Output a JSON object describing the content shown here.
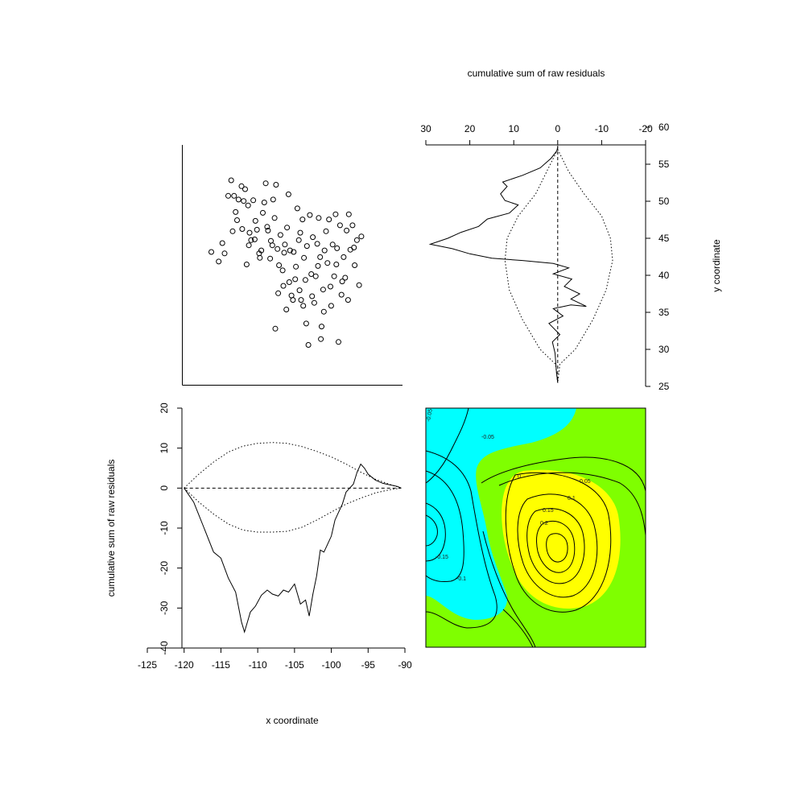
{
  "chart_data": [
    {
      "panel": "top-left",
      "type": "scatter",
      "title": "",
      "points": [
        [
          -114.5,
          44.2
        ],
        [
          -113.7,
          50.6
        ],
        [
          -113.3,
          52.7
        ],
        [
          -112.9,
          50.6
        ],
        [
          -112.5,
          47.3
        ],
        [
          -112.3,
          50.1
        ],
        [
          -111.9,
          51.9
        ],
        [
          -111.6,
          49.9
        ],
        [
          -111.4,
          51.5
        ],
        [
          -111.2,
          41.3
        ],
        [
          -111.0,
          49.3
        ],
        [
          -110.8,
          45.6
        ],
        [
          -110.6,
          44.6
        ],
        [
          -110.3,
          50.0
        ],
        [
          -110.0,
          47.2
        ],
        [
          -109.8,
          46.0
        ],
        [
          -109.5,
          42.8
        ],
        [
          -109.2,
          43.2
        ],
        [
          -109.0,
          48.3
        ],
        [
          -108.8,
          49.7
        ],
        [
          -108.6,
          52.3
        ],
        [
          -108.3,
          45.9
        ],
        [
          -108.0,
          42.1
        ],
        [
          -107.9,
          44.5
        ],
        [
          -107.6,
          50.1
        ],
        [
          -107.4,
          47.6
        ],
        [
          -107.2,
          52.1
        ],
        [
          -107.0,
          43.4
        ],
        [
          -106.8,
          41.2
        ],
        [
          -106.6,
          45.3
        ],
        [
          -106.3,
          40.5
        ],
        [
          -106.2,
          38.4
        ],
        [
          -106.0,
          44.0
        ],
        [
          -105.7,
          46.3
        ],
        [
          -105.5,
          50.8
        ],
        [
          -105.3,
          43.2
        ],
        [
          -105.1,
          37.1
        ],
        [
          -104.9,
          36.5
        ],
        [
          -104.8,
          43.0
        ],
        [
          -104.5,
          41.0
        ],
        [
          -104.3,
          48.9
        ],
        [
          -104.1,
          44.6
        ],
        [
          -103.9,
          45.6
        ],
        [
          -103.6,
          47.4
        ],
        [
          -103.4,
          42.2
        ],
        [
          -103.2,
          39.2
        ],
        [
          -103.0,
          43.8
        ],
        [
          -102.8,
          30.4
        ],
        [
          -102.6,
          48.0
        ],
        [
          -102.4,
          40.0
        ],
        [
          -102.2,
          45.0
        ],
        [
          -102.0,
          36.1
        ],
        [
          -101.8,
          39.7
        ],
        [
          -101.6,
          44.1
        ],
        [
          -101.4,
          47.6
        ],
        [
          -101.2,
          42.3
        ],
        [
          -101.0,
          32.9
        ],
        [
          -100.8,
          37.9
        ],
        [
          -100.6,
          43.2
        ],
        [
          -100.4,
          45.8
        ],
        [
          -100.2,
          41.5
        ],
        [
          -100.0,
          47.4
        ],
        [
          -99.7,
          35.7
        ],
        [
          -99.5,
          44.0
        ],
        [
          -99.3,
          39.7
        ],
        [
          -99.1,
          48.1
        ],
        [
          -98.9,
          43.5
        ],
        [
          -98.7,
          30.8
        ],
        [
          -98.5,
          46.6
        ],
        [
          -98.3,
          37.2
        ],
        [
          -98.0,
          42.3
        ],
        [
          -97.8,
          39.5
        ],
        [
          -97.6,
          45.9
        ],
        [
          -97.3,
          48.1
        ],
        [
          -97.1,
          43.3
        ],
        [
          -96.8,
          46.6
        ],
        [
          -96.5,
          41.2
        ],
        [
          -96.2,
          44.6
        ],
        [
          -95.9,
          38.5
        ],
        [
          -95.6,
          45.1
        ],
        [
          -116.0,
          43.0
        ],
        [
          -115.0,
          41.7
        ],
        [
          -114.2,
          42.8
        ],
        [
          -113.1,
          45.8
        ],
        [
          -112.7,
          48.4
        ],
        [
          -111.8,
          46.1
        ],
        [
          -110.9,
          43.9
        ],
        [
          -110.1,
          44.7
        ],
        [
          -109.4,
          42.2
        ],
        [
          -108.4,
          46.4
        ],
        [
          -107.7,
          43.9
        ],
        [
          -106.9,
          37.4
        ],
        [
          -106.1,
          42.9
        ],
        [
          -105.4,
          38.9
        ],
        [
          -104.6,
          39.3
        ],
        [
          -103.8,
          36.5
        ],
        [
          -103.1,
          33.3
        ],
        [
          -102.3,
          37.0
        ],
        [
          -101.5,
          41.1
        ],
        [
          -100.7,
          34.9
        ],
        [
          -99.8,
          38.3
        ],
        [
          -99.0,
          41.3
        ],
        [
          -98.2,
          39.0
        ],
        [
          -97.4,
          36.5
        ],
        [
          -96.6,
          43.6
        ],
        [
          -107.3,
          32.6
        ],
        [
          -105.8,
          35.2
        ],
        [
          -101.1,
          31.2
        ],
        [
          -103.5,
          35.7
        ],
        [
          -104.0,
          37.8
        ]
      ],
      "xlim": [
        -120,
        -90
      ],
      "ylim": [
        25,
        57.5
      ],
      "grid": false
    },
    {
      "panel": "top-right",
      "type": "line",
      "title": "cumulative sum of raw residuals",
      "ylabel": "y coordinate",
      "xlim": [
        30,
        -20
      ],
      "ylim": [
        25,
        60
      ],
      "x_ticks": [
        30,
        20,
        10,
        0,
        -10,
        -20
      ],
      "y_ticks": [
        25,
        30,
        35,
        40,
        45,
        50,
        55,
        60
      ],
      "series": [
        {
          "points": [
            [
              0,
              25.5
            ],
            [
              0.3,
              27
            ],
            [
              0.6,
              29.5
            ],
            [
              1.2,
              31
            ],
            [
              -0.5,
              32
            ],
            [
              2.0,
              33.5
            ],
            [
              -1.2,
              34.5
            ],
            [
              1.0,
              35.5
            ],
            [
              -3.0,
              36
            ],
            [
              -6.5,
              35.8
            ],
            [
              -3.0,
              36.8
            ],
            [
              -5.0,
              37.5
            ],
            [
              -1.5,
              38.5
            ],
            [
              -3.2,
              39.5
            ],
            [
              1.0,
              40.2
            ],
            [
              -2.5,
              41.0
            ],
            [
              1.0,
              41.6
            ],
            [
              8.0,
              42.0
            ],
            [
              15.0,
              42.3
            ],
            [
              20.0,
              42.9
            ],
            [
              24.0,
              43.6
            ],
            [
              29.0,
              44.2
            ],
            [
              25.0,
              45.0
            ],
            [
              22.0,
              45.8
            ],
            [
              18.0,
              46.6
            ],
            [
              16.0,
              47.6
            ],
            [
              11.0,
              48.4
            ],
            [
              9.0,
              49.5
            ],
            [
              12.0,
              50.1
            ],
            [
              13.0,
              51.0
            ],
            [
              11.5,
              52.0
            ],
            [
              12.5,
              52.6
            ],
            [
              8.0,
              53.5
            ],
            [
              4.0,
              54.5
            ],
            [
              1.5,
              55.8
            ],
            [
              0.2,
              56.8
            ],
            [
              0,
              57.3
            ]
          ]
        },
        {
          "points": [
            [
              0,
              57
            ],
            [
              -2.5,
              54
            ],
            [
              -6,
              51
            ],
            [
              -10,
              48
            ],
            [
              -12,
              45
            ],
            [
              -12.5,
              42
            ],
            [
              -11,
              38
            ],
            [
              -8,
              34
            ],
            [
              -4,
              30
            ],
            [
              -0.5,
              28
            ],
            [
              0,
              25.5
            ]
          ]
        },
        {
          "points": [
            [
              0,
              57
            ],
            [
              2.5,
              54
            ],
            [
              5,
              51
            ],
            [
              9,
              48
            ],
            [
              11.5,
              45
            ],
            [
              12,
              42
            ],
            [
              11,
              38
            ],
            [
              8,
              34
            ],
            [
              4,
              30
            ],
            [
              0.5,
              28
            ],
            [
              0,
              25.5
            ]
          ]
        }
      ],
      "zero_line": 0,
      "grid": false
    },
    {
      "panel": "bottom-left",
      "type": "line",
      "title": "",
      "xlabel": "x coordinate",
      "ylabel": "cumulative sum of raw residuals",
      "xlim": [
        -120,
        -90
      ],
      "ylim": [
        -40,
        20
      ],
      "x_ticks": [
        -125,
        -120,
        -115,
        -110,
        -105,
        -100,
        -95,
        -90
      ],
      "y_ticks": [
        -40,
        -30,
        -20,
        -10,
        0,
        10,
        20
      ],
      "series": [
        {
          "points": [
            [
              -120.0,
              0
            ],
            [
              -118.7,
              -3.5
            ],
            [
              -117.4,
              -9.5
            ],
            [
              -116.0,
              -16
            ],
            [
              -115.0,
              -17.5
            ],
            [
              -114.0,
              -22.5
            ],
            [
              -113.0,
              -26
            ],
            [
              -112.2,
              -33.5
            ],
            [
              -111.8,
              -36
            ],
            [
              -111.0,
              -31
            ],
            [
              -110.3,
              -29.5
            ],
            [
              -109.5,
              -26.8
            ],
            [
              -108.7,
              -25.5
            ],
            [
              -108.0,
              -26.5
            ],
            [
              -107.2,
              -27
            ],
            [
              -106.5,
              -25.5
            ],
            [
              -105.8,
              -26
            ],
            [
              -105.0,
              -24
            ],
            [
              -104.2,
              -29
            ],
            [
              -103.5,
              -28
            ],
            [
              -103.0,
              -32
            ],
            [
              -102.5,
              -26.5
            ],
            [
              -102.0,
              -22
            ],
            [
              -101.5,
              -15.5
            ],
            [
              -101.0,
              -16
            ],
            [
              -100.5,
              -14
            ],
            [
              -100.0,
              -12
            ],
            [
              -99.5,
              -8
            ],
            [
              -99.0,
              -6
            ],
            [
              -98.5,
              -4
            ],
            [
              -98.0,
              -1
            ],
            [
              -97.5,
              0
            ],
            [
              -97.0,
              1
            ],
            [
              -96.5,
              4
            ],
            [
              -96.0,
              6
            ],
            [
              -95.5,
              5
            ],
            [
              -95.0,
              3.5
            ],
            [
              -94.0,
              2
            ],
            [
              -93.0,
              1.2
            ],
            [
              -92.0,
              0.8
            ],
            [
              -91.0,
              0.4
            ],
            [
              -90.5,
              0
            ]
          ]
        },
        {
          "points": [
            [
              -120,
              0
            ],
            [
              -118,
              3.5
            ],
            [
              -116,
              6.5
            ],
            [
              -114,
              9
            ],
            [
              -112,
              10.5
            ],
            [
              -110,
              11.2
            ],
            [
              -108,
              11.4
            ],
            [
              -106,
              11.2
            ],
            [
              -104,
              10.4
            ],
            [
              -102,
              9.2
            ],
            [
              -100,
              7.8
            ],
            [
              -98,
              6
            ],
            [
              -96,
              4
            ],
            [
              -94,
              2.2
            ],
            [
              -92,
              0.9
            ],
            [
              -90.5,
              0
            ]
          ]
        },
        {
          "points": [
            [
              -120,
              0
            ],
            [
              -118,
              -3.5
            ],
            [
              -116,
              -6.5
            ],
            [
              -114,
              -9
            ],
            [
              -112,
              -10.5
            ],
            [
              -110,
              -11
            ],
            [
              -108,
              -11
            ],
            [
              -106,
              -10.8
            ],
            [
              -104,
              -9.8
            ],
            [
              -102,
              -8
            ],
            [
              -100,
              -6
            ],
            [
              -98,
              -4
            ],
            [
              -96,
              -2.5
            ],
            [
              -94,
              -1.2
            ],
            [
              -92,
              -0.4
            ],
            [
              -90.5,
              0
            ]
          ]
        }
      ],
      "zero_line": 0,
      "grid": false
    },
    {
      "panel": "bottom-right",
      "type": "heatmap",
      "title": "",
      "contour_labels": [
        "-0.05",
        "0",
        "0.05",
        "0.1",
        "0.15",
        "0.2",
        "-0.15",
        "-0.1",
        "-0.05"
      ],
      "colors": {
        "negative": "#00ffff",
        "neutral": "#7fff00",
        "positive": "#ffff00",
        "contour": "#000000"
      },
      "grid": false
    }
  ]
}
